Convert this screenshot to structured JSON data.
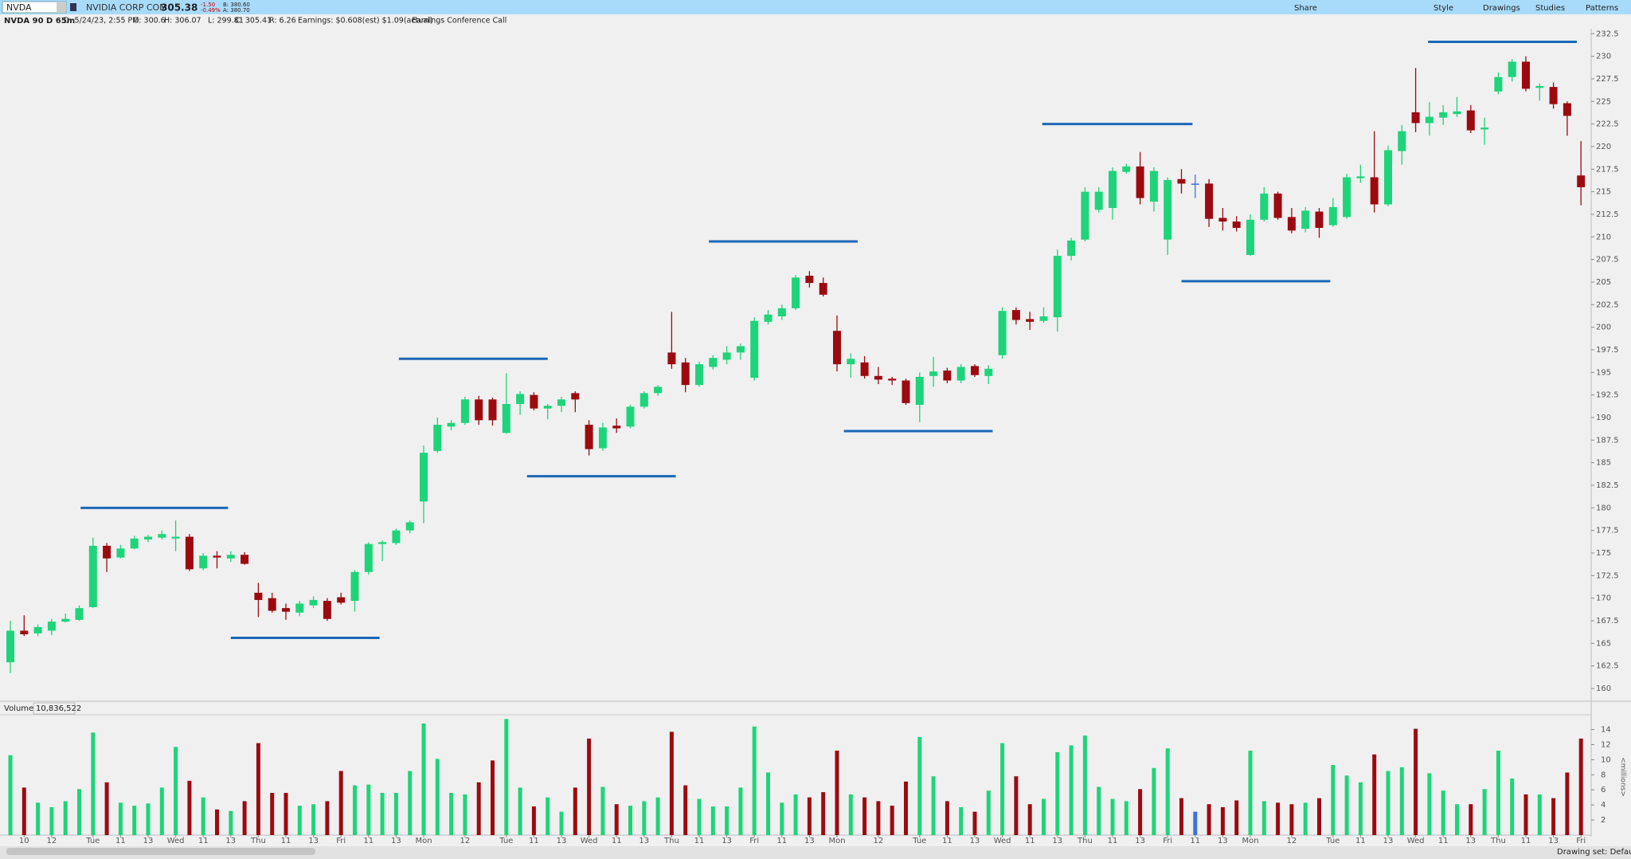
{
  "toolbar": {
    "symbol": "NVDA",
    "description": "NVIDIA CORP COM",
    "last": "305.38",
    "change": "-1.50",
    "change_pct": "-0.49%",
    "bid": "B: 380.60",
    "ask": "A: 380.70",
    "buttons": [
      "Share",
      "Style",
      "Drawings",
      "Studies",
      "Patterns"
    ]
  },
  "info": {
    "chart_label": "NVDA 90 D 65m",
    "items": [
      "D: 5/24/23, 2:55 PM",
      "O: 300.6",
      "H: 306.07",
      "L: 299.81",
      "C: 305.41",
      "R: 6.26",
      "Earnings: $0.608(est) $1.09(actual)",
      "Earnings Conference Call"
    ]
  },
  "volume_header": {
    "label": "Volume",
    "value": "10,836,522"
  },
  "status": "Drawing set: Default",
  "chart_data": [
    {
      "type": "candlestick",
      "open": [
        162.9,
        166.4,
        166.1,
        166.4,
        167.4,
        167.6,
        169.0,
        175.8,
        174.5,
        175.5,
        176.5,
        176.7,
        176.6,
        176.8,
        173.3,
        174.7,
        174.4,
        174.8,
        170.6,
        170.0,
        168.9,
        168.4,
        169.2,
        169.7,
        170.1,
        169.7,
        172.9,
        176.0,
        176.1,
        177.5,
        180.7,
        186.3,
        189.0,
        189.4,
        192.0,
        192.0,
        188.3,
        191.5,
        192.5,
        191.0,
        191.3,
        192.7,
        189.2,
        186.6,
        189.1,
        189.0,
        191.2,
        192.7,
        197.2,
        196.1,
        193.6,
        195.6,
        196.4,
        197.2,
        194.4,
        200.6,
        201.2,
        202.1,
        205.7,
        204.9,
        199.6,
        195.9,
        196.1,
        194.6,
        194.3,
        194.1,
        191.4,
        194.6,
        195.2,
        194.1,
        195.7,
        194.6,
        196.9,
        201.9,
        200.9,
        200.7,
        201.1,
        207.9,
        209.7,
        213.0,
        213.2,
        217.2,
        217.8,
        213.9,
        209.7,
        216.4,
        215.9,
        215.9,
        212.1,
        211.7,
        208.0,
        211.9,
        214.8,
        212.2,
        210.9,
        212.8,
        211.3,
        212.2,
        216.5,
        216.6,
        213.6,
        219.5,
        223.8,
        222.6,
        223.2,
        223.6,
        224.0,
        221.9,
        226.1,
        227.7,
        229.4,
        226.5,
        226.6,
        224.8,
        216.8
      ],
      "high": [
        167.5,
        168.1,
        167.1,
        167.7,
        168.3,
        169.2,
        176.7,
        176.1,
        175.9,
        176.9,
        177.0,
        177.5,
        178.6,
        177.1,
        175.0,
        175.2,
        175.2,
        175.1,
        171.7,
        170.6,
        169.4,
        169.7,
        170.2,
        170.0,
        170.6,
        173.1,
        176.2,
        176.4,
        177.7,
        178.6,
        186.9,
        190.0,
        189.7,
        192.3,
        192.4,
        192.2,
        194.9,
        192.9,
        192.8,
        191.5,
        192.3,
        192.9,
        189.7,
        189.4,
        189.9,
        191.4,
        192.9,
        193.6,
        201.7,
        196.6,
        196.2,
        196.9,
        197.9,
        198.2,
        201.1,
        201.9,
        202.5,
        205.8,
        206.2,
        205.5,
        201.3,
        197.1,
        196.8,
        195.6,
        194.5,
        194.3,
        195.0,
        196.7,
        195.5,
        195.9,
        195.9,
        195.8,
        202.2,
        202.2,
        201.7,
        202.2,
        208.6,
        209.9,
        215.5,
        215.5,
        217.7,
        218.1,
        219.4,
        217.7,
        216.6,
        217.5,
        216.9,
        216.4,
        213.2,
        212.3,
        212.5,
        215.5,
        215.0,
        213.2,
        213.3,
        213.2,
        214.3,
        217.0,
        218.0,
        221.7,
        220.1,
        222.4,
        228.7,
        224.9,
        224.6,
        225.5,
        224.6,
        223.2,
        228.2,
        229.7,
        230.0,
        227.0,
        227.1,
        225.0,
        220.6
      ],
      "low": [
        161.7,
        165.8,
        165.8,
        165.9,
        167.3,
        167.5,
        168.9,
        172.9,
        174.4,
        175.4,
        176.2,
        176.5,
        175.2,
        173.0,
        173.1,
        173.3,
        174.0,
        173.7,
        167.9,
        168.4,
        167.6,
        168.0,
        168.9,
        167.5,
        169.3,
        168.5,
        172.6,
        174.1,
        175.9,
        177.2,
        178.3,
        186.1,
        188.6,
        189.2,
        189.2,
        189.1,
        188.2,
        190.3,
        190.8,
        189.8,
        190.6,
        190.6,
        185.8,
        186.3,
        188.3,
        188.8,
        191.0,
        192.4,
        195.4,
        192.8,
        193.4,
        195.3,
        195.9,
        196.4,
        194.1,
        200.3,
        200.8,
        201.9,
        204.4,
        203.4,
        195.1,
        194.4,
        194.3,
        193.7,
        193.6,
        191.4,
        189.5,
        193.4,
        193.8,
        193.8,
        194.5,
        193.7,
        196.5,
        200.3,
        199.7,
        200.5,
        199.5,
        207.4,
        209.5,
        212.7,
        211.9,
        217.0,
        213.6,
        212.8,
        208.0,
        214.8,
        214.3,
        211.1,
        210.7,
        210.6,
        207.9,
        211.7,
        211.9,
        210.4,
        210.5,
        209.9,
        211.1,
        212.0,
        216.0,
        212.7,
        213.4,
        218.0,
        221.6,
        221.2,
        222.4,
        223.3,
        221.5,
        220.2,
        225.8,
        227.2,
        226.1,
        225.1,
        224.2,
        221.2,
        213.5
      ],
      "close": [
        166.4,
        166.0,
        166.8,
        167.4,
        167.7,
        168.9,
        175.8,
        174.4,
        175.5,
        176.6,
        176.8,
        177.1,
        176.8,
        173.2,
        174.7,
        174.5,
        174.8,
        173.8,
        169.8,
        168.6,
        168.5,
        169.4,
        169.8,
        167.7,
        169.5,
        172.9,
        176.0,
        176.2,
        177.5,
        178.4,
        186.1,
        189.2,
        189.4,
        192.0,
        189.7,
        189.7,
        191.5,
        192.6,
        191.0,
        191.3,
        192.0,
        192.0,
        186.5,
        188.9,
        188.8,
        191.2,
        192.7,
        193.4,
        195.9,
        193.6,
        195.9,
        196.6,
        197.2,
        197.9,
        200.7,
        201.4,
        202.1,
        205.5,
        204.9,
        203.6,
        195.9,
        196.5,
        194.6,
        194.2,
        194.1,
        191.6,
        194.5,
        195.1,
        194.1,
        195.6,
        194.7,
        195.4,
        201.8,
        200.8,
        200.6,
        201.2,
        207.9,
        209.6,
        215.0,
        215.0,
        217.3,
        217.8,
        214.3,
        217.3,
        216.3,
        215.9,
        215.9,
        212.0,
        211.7,
        211.0,
        211.9,
        214.8,
        212.1,
        210.7,
        212.9,
        211.0,
        213.3,
        216.6,
        216.7,
        213.6,
        219.6,
        221.7,
        222.6,
        223.3,
        223.8,
        223.9,
        221.8,
        222.1,
        227.7,
        229.4,
        226.4,
        226.7,
        224.7,
        223.4,
        215.5
      ],
      "up_color": "#1ed47a",
      "down_color": "#9c0a10",
      "flat_color": "#3f72d8",
      "ylim": [
        158.8,
        233.0
      ],
      "yticks": [
        160,
        162.5,
        165,
        167.5,
        170,
        172.5,
        175,
        177.5,
        180,
        182.5,
        185,
        187.5,
        190,
        192.5,
        195,
        197.5,
        200,
        202.5,
        205,
        207.5,
        210,
        212.5,
        215,
        217.5,
        220,
        222.5,
        225,
        227.5,
        230,
        232.5
      ],
      "level_color": "#1b67b7",
      "levels": [
        {
          "price": 180.0,
          "from": 5.1,
          "to": 15.8
        },
        {
          "price": 165.6,
          "from": 16.0,
          "to": 26.8
        },
        {
          "price": 196.5,
          "from": 28.2,
          "to": 39.0
        },
        {
          "price": 183.5,
          "from": 37.5,
          "to": 48.3
        },
        {
          "price": 209.5,
          "from": 50.7,
          "to": 61.5
        },
        {
          "price": 188.5,
          "from": 60.5,
          "to": 71.3
        },
        {
          "price": 222.5,
          "from": 74.9,
          "to": 85.8
        },
        {
          "price": 205.1,
          "from": 85.0,
          "to": 95.8
        },
        {
          "price": 231.6,
          "from": 102.9,
          "to": 113.7
        }
      ]
    },
    {
      "type": "bar",
      "y_label": "<millions>",
      "categories": [
        null,
        "10",
        null,
        "12",
        null,
        null,
        "Tue",
        null,
        "11",
        null,
        "13",
        null,
        "Wed",
        null,
        "11",
        null,
        "13",
        null,
        "Thu",
        null,
        "11",
        null,
        "13",
        null,
        "Fri",
        null,
        "11",
        null,
        "13",
        null,
        "Mon",
        null,
        null,
        "12",
        null,
        null,
        "Tue",
        null,
        "11",
        null,
        "13",
        null,
        "Wed",
        null,
        "11",
        null,
        "13",
        null,
        "Thu",
        null,
        "11",
        null,
        "13",
        null,
        "Fri",
        null,
        "11",
        null,
        "13",
        null,
        "Mon",
        null,
        null,
        "12",
        null,
        null,
        "Tue",
        null,
        "11",
        null,
        "13",
        null,
        "Wed",
        null,
        "11",
        null,
        "13",
        null,
        "Thu",
        null,
        "11",
        null,
        "13",
        null,
        "Fri",
        null,
        "11",
        null,
        "13",
        null,
        "Mon",
        null,
        null,
        "12",
        null,
        null,
        "Tue",
        null,
        "11",
        null,
        "13",
        null,
        "Wed",
        null,
        "11",
        null,
        "13",
        null,
        "Thu",
        null,
        "11",
        null,
        "13",
        null,
        "Fri"
      ],
      "values": [
        10.6,
        6.3,
        4.3,
        3.7,
        4.5,
        6.1,
        13.6,
        7.0,
        4.3,
        3.9,
        4.2,
        6.3,
        11.7,
        7.2,
        5.0,
        3.4,
        3.2,
        4.5,
        12.2,
        5.6,
        5.6,
        3.9,
        4.1,
        4.5,
        8.5,
        6.6,
        6.7,
        5.6,
        5.6,
        8.5,
        14.8,
        10.1,
        5.6,
        5.4,
        7.0,
        9.9,
        15.4,
        6.3,
        3.8,
        5.0,
        3.1,
        6.3,
        12.8,
        6.4,
        4.1,
        3.9,
        4.5,
        5.0,
        13.7,
        6.6,
        4.8,
        3.8,
        3.8,
        6.3,
        14.4,
        8.3,
        4.3,
        5.4,
        5.0,
        5.7,
        11.2,
        5.4,
        5.0,
        4.5,
        3.9,
        7.1,
        13.0,
        7.8,
        4.5,
        3.7,
        3.1,
        5.9,
        12.2,
        7.8,
        4.1,
        4.8,
        11.0,
        11.9,
        13.2,
        6.4,
        4.8,
        4.5,
        6.1,
        8.9,
        11.5,
        4.9,
        3.1,
        4.1,
        3.7,
        4.6,
        11.2,
        4.5,
        4.3,
        4.1,
        4.3,
        4.9,
        9.3,
        7.9,
        7.0,
        10.7,
        8.5,
        9.0,
        14.1,
        8.2,
        5.9,
        4.1,
        4.1,
        6.1,
        11.2,
        7.5,
        5.4,
        5.4,
        4.9,
        8.3,
        12.8
      ],
      "ylim": [
        0,
        15.8
      ],
      "yticks": [
        2,
        4,
        6,
        8,
        10,
        12,
        14
      ]
    }
  ]
}
